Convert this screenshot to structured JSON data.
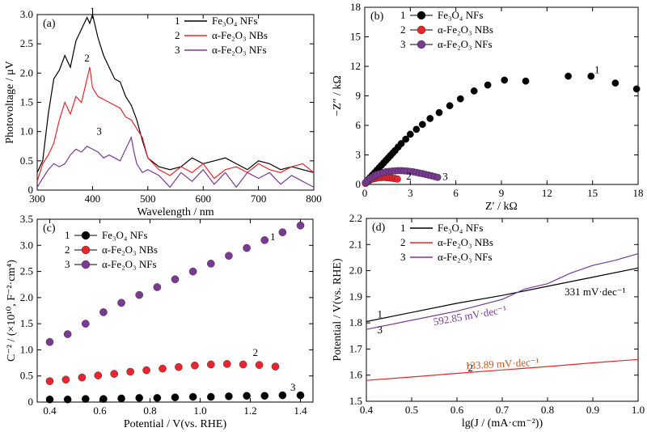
{
  "colors": {
    "black": "#000000",
    "red": "#e8262b",
    "purple": "#7a3a93",
    "green": "#1a6b12",
    "orange": "#d1541f"
  },
  "chart_data": [
    {
      "panel": "(a)",
      "type": "line",
      "xlabel": "Wavelength / nm",
      "ylabel": "Photovoltage / μV",
      "xlim": [
        300,
        800
      ],
      "ylim": [
        0,
        3.0
      ],
      "xticks": [
        "300",
        "400",
        "500",
        "600",
        "700",
        "800"
      ],
      "yticks": [
        "0",
        "0.5",
        "1.0",
        "1.5",
        "2.0",
        "2.5",
        "3.0"
      ],
      "legend": [
        {
          "num": "1",
          "label": "Fe₃O₄ NFs"
        },
        {
          "num": "2",
          "label": "α-Fe₂O₃ NBs"
        },
        {
          "num": "3",
          "label": "α-Fe₂O₃ NFs"
        }
      ],
      "curve_labels": [
        "1",
        "2",
        "3"
      ],
      "series": [
        {
          "name": "Fe₃O₄ NFs",
          "color": "black",
          "x": [
            300,
            310,
            320,
            330,
            340,
            350,
            360,
            370,
            380,
            390,
            395,
            400,
            410,
            420,
            430,
            440,
            450,
            460,
            470,
            480,
            490,
            500,
            520,
            540,
            560,
            580,
            600,
            620,
            640,
            660,
            680,
            700,
            720,
            740,
            760,
            780,
            800
          ],
          "y": [
            0.3,
            0.5,
            1.3,
            1.9,
            2.05,
            2.3,
            2.1,
            2.55,
            2.75,
            2.95,
            2.85,
            3.0,
            2.6,
            2.3,
            2.1,
            1.9,
            1.85,
            1.6,
            1.45,
            1.2,
            0.85,
            0.55,
            0.4,
            0.35,
            0.4,
            0.55,
            0.45,
            0.5,
            0.55,
            0.45,
            0.35,
            0.5,
            0.45,
            0.35,
            0.4,
            0.35,
            0.3
          ]
        },
        {
          "name": "α-Fe₂O₃ NBs",
          "color": "red",
          "x": [
            300,
            310,
            320,
            330,
            340,
            350,
            360,
            370,
            380,
            390,
            395,
            400,
            410,
            420,
            430,
            440,
            450,
            460,
            470,
            480,
            490,
            500,
            520,
            540,
            560,
            580,
            600,
            620,
            640,
            660,
            680,
            700,
            720,
            740,
            760,
            780,
            800
          ],
          "y": [
            0.15,
            0.45,
            0.6,
            0.8,
            1.2,
            1.5,
            1.3,
            1.6,
            1.5,
            1.9,
            2.1,
            1.75,
            1.6,
            1.55,
            1.5,
            1.45,
            1.4,
            1.25,
            1.2,
            1.05,
            0.9,
            0.55,
            0.35,
            0.25,
            0.4,
            0.3,
            0.45,
            0.2,
            0.35,
            0.4,
            0.3,
            0.45,
            0.35,
            0.3,
            0.4,
            0.45,
            0.3
          ]
        },
        {
          "name": "α-Fe₂O₃ NFs",
          "color": "purple",
          "x": [
            300,
            310,
            320,
            330,
            340,
            350,
            360,
            370,
            380,
            390,
            400,
            410,
            420,
            430,
            440,
            450,
            460,
            470,
            475,
            480,
            490,
            500,
            520,
            540,
            560,
            580,
            600,
            620,
            640,
            660,
            680,
            700,
            720,
            740,
            760,
            780,
            800
          ],
          "y": [
            0.05,
            0.2,
            0.35,
            0.45,
            0.4,
            0.45,
            0.6,
            0.7,
            0.65,
            0.75,
            0.7,
            0.65,
            0.55,
            0.6,
            0.55,
            0.5,
            0.7,
            0.9,
            0.65,
            0.45,
            0.3,
            0.35,
            0.25,
            0.05,
            0.3,
            0.15,
            0.35,
            0.1,
            0.3,
            0.05,
            0.3,
            0.2,
            0.3,
            0.1,
            0.25,
            0.15,
            0.05
          ]
        }
      ]
    },
    {
      "panel": "(b)",
      "type": "scatter",
      "xlabel": "Z′ / kΩ",
      "ylabel": "−Z″ / kΩ",
      "xlim": [
        0,
        18
      ],
      "ylim": [
        0,
        18
      ],
      "xticks": [
        "0",
        "3",
        "6",
        "9",
        "12",
        "15",
        "18"
      ],
      "yticks": [
        "0",
        "3",
        "6",
        "9",
        "12",
        "15",
        "18"
      ],
      "legend": [
        {
          "num": "1",
          "label": "Fe₃O₄ NFs"
        },
        {
          "num": "2",
          "label": "α-Fe₂O₃ NBs"
        },
        {
          "num": "3",
          "label": "α-Fe₂O₃ NFs"
        }
      ],
      "curve_labels": [
        "1",
        "2",
        "3"
      ],
      "series": [
        {
          "name": "Fe₃O₄ NFs",
          "color": "black",
          "x": [
            0.1,
            0.2,
            0.35,
            0.5,
            0.65,
            0.8,
            0.95,
            1.1,
            1.25,
            1.4,
            1.55,
            1.7,
            1.85,
            2.0,
            2.2,
            2.4,
            2.7,
            3.0,
            3.4,
            3.8,
            4.3,
            4.9,
            5.6,
            6.3,
            7.2,
            8.1,
            9.2,
            10.6,
            13.4,
            14.9,
            16.5,
            17.9
          ],
          "y": [
            0.2,
            0.45,
            0.7,
            0.95,
            1.2,
            1.45,
            1.7,
            1.95,
            2.2,
            2.45,
            2.7,
            2.95,
            3.2,
            3.45,
            3.8,
            4.15,
            4.6,
            5.1,
            5.6,
            6.1,
            6.7,
            7.3,
            8.0,
            8.7,
            9.5,
            10.1,
            10.6,
            10.5,
            11.0,
            11.0,
            10.3,
            9.7
          ]
        },
        {
          "name": "α-Fe₂O₃ NBs",
          "color": "red",
          "x": [
            0.05,
            0.15,
            0.25,
            0.35,
            0.5,
            0.65,
            0.8,
            0.95,
            1.1,
            1.25,
            1.4,
            1.55,
            1.7,
            1.85,
            2.0,
            2.15
          ],
          "y": [
            0.1,
            0.25,
            0.35,
            0.45,
            0.55,
            0.6,
            0.65,
            0.7,
            0.7,
            0.72,
            0.7,
            0.68,
            0.66,
            0.62,
            0.6,
            0.55
          ]
        },
        {
          "name": "α-Fe₂O₃ NFs",
          "color": "purple",
          "x": [
            0.05,
            0.2,
            0.35,
            0.5,
            0.65,
            0.8,
            1.0,
            1.2,
            1.4,
            1.6,
            1.8,
            2.0,
            2.2,
            2.4,
            2.6,
            2.8,
            3.0,
            3.2,
            3.4,
            3.6,
            3.8,
            4.0,
            4.2,
            4.4,
            4.6,
            4.8
          ],
          "y": [
            0.2,
            0.4,
            0.6,
            0.75,
            0.9,
            1.0,
            1.1,
            1.2,
            1.3,
            1.32,
            1.35,
            1.38,
            1.4,
            1.4,
            1.38,
            1.36,
            1.32,
            1.28,
            1.22,
            1.15,
            1.1,
            1.02,
            0.95,
            0.88,
            0.8,
            0.72
          ]
        }
      ]
    },
    {
      "panel": "(c)",
      "type": "scatter",
      "xlabel": "Potential / V(vs. RHE)",
      "ylabel": "C⁻² / (×10¹⁰, F⁻²·cm⁴)",
      "xlim": [
        0.35,
        1.45
      ],
      "ylim": [
        0,
        3.5
      ],
      "xticks": [
        "0.4",
        "0.6",
        "0.8",
        "1.0",
        "1.2",
        "1.4"
      ],
      "yticks": [
        "0",
        "0.5",
        "1.0",
        "1.5",
        "2.0",
        "2.5",
        "3.0",
        "3.5"
      ],
      "legend": [
        {
          "num": "1",
          "label": "Fe₃O₄ NFs"
        },
        {
          "num": "2",
          "label": "α-Fe₂O₃ NBs"
        },
        {
          "num": "3",
          "label": "α-Fe₂O₃ NFs"
        }
      ],
      "curve_labels": [
        "1",
        "2",
        "3"
      ],
      "series": [
        {
          "name": "Fe₃O₄ NFs",
          "color": "black",
          "x_range": [
            0.4,
            1.4
          ],
          "y": [
            0.05,
            0.05,
            0.06,
            0.06,
            0.07,
            0.08,
            0.08,
            0.09,
            0.1,
            0.1,
            0.11,
            0.12,
            0.12,
            0.13,
            0.13
          ]
        },
        {
          "name": "α-Fe₂O₃ NBs",
          "color": "red",
          "x_range": [
            0.4,
            1.3
          ],
          "y": [
            0.4,
            0.43,
            0.47,
            0.51,
            0.54,
            0.58,
            0.61,
            0.64,
            0.67,
            0.7,
            0.72,
            0.73,
            0.72,
            0.71,
            0.68
          ]
        },
        {
          "name": "α-Fe₂O₃ NFs",
          "color": "purple",
          "x_range": [
            0.4,
            1.4
          ],
          "y": [
            1.15,
            1.3,
            1.5,
            1.72,
            1.9,
            2.05,
            2.2,
            2.35,
            2.5,
            2.65,
            2.8,
            2.95,
            3.1,
            3.25,
            3.38
          ]
        }
      ]
    },
    {
      "panel": "(d)",
      "type": "line",
      "xlabel": "lg(J / (mA·cm⁻²))",
      "ylabel": "Potential / V(vs. RHE)",
      "xlim": [
        0.4,
        1.0
      ],
      "ylim": [
        1.5,
        2.2
      ],
      "xticks": [
        "0.4",
        "0.5",
        "0.6",
        "0.7",
        "0.8",
        "0.9",
        "1.0"
      ],
      "yticks": [
        "1.5",
        "1.6",
        "1.7",
        "1.8",
        "1.9",
        "2.0",
        "2.1",
        "2.2"
      ],
      "legend": [
        {
          "num": "1",
          "label": "Fe₃O₄ NFs"
        },
        {
          "num": "2",
          "label": "α-Fe₂O₃ NBs"
        },
        {
          "num": "3",
          "label": "α-Fe₂O₃ NFs"
        }
      ],
      "curve_labels": [
        "1",
        "2",
        "3"
      ],
      "annotations": [
        {
          "text": "331 mV·dec⁻¹",
          "series": "Fe₃O₄ NFs"
        },
        {
          "text": "592.85 mV·dec⁻¹",
          "series": "α-Fe₂O₃ NFs"
        },
        {
          "text": "133.89 mV·dec⁻¹",
          "series": "α-Fe₂O₃ NBs"
        }
      ],
      "series": [
        {
          "name": "Fe₃O₄ NFs",
          "color": "black",
          "x": [
            0.4,
            0.5,
            0.6,
            0.7,
            0.8,
            0.9,
            1.0
          ],
          "y": [
            1.805,
            1.84,
            1.875,
            1.905,
            1.94,
            1.975,
            2.01
          ]
        },
        {
          "name": "α-Fe₂O₃ NBs",
          "color": "red",
          "x": [
            0.4,
            0.5,
            0.6,
            0.7,
            0.8,
            0.9,
            1.0
          ],
          "y": [
            1.58,
            1.593,
            1.607,
            1.62,
            1.633,
            1.647,
            1.66
          ]
        },
        {
          "name": "α-Fe₂O₃ NFs",
          "color": "purple",
          "x": [
            0.4,
            0.5,
            0.6,
            0.7,
            0.75,
            0.8,
            0.85,
            0.9,
            0.95,
            1.0
          ],
          "y": [
            1.775,
            1.81,
            1.845,
            1.89,
            1.93,
            1.95,
            1.99,
            2.02,
            2.04,
            2.065
          ]
        }
      ]
    }
  ]
}
